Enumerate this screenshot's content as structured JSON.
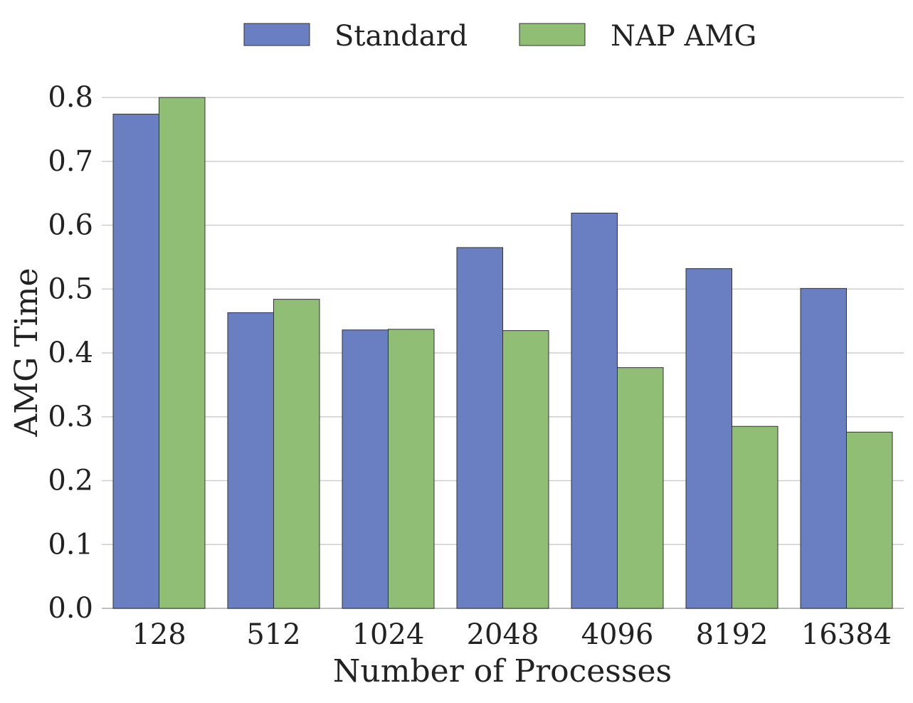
{
  "chart_data": {
    "type": "bar",
    "title": "",
    "xlabel": "Number of Processes",
    "ylabel": "AMG Time",
    "categories": [
      "128",
      "512",
      "1024",
      "2048",
      "4096",
      "8192",
      "16384"
    ],
    "series": [
      {
        "name": "Standard",
        "color": "#6a7fc1",
        "values": [
          0.774,
          0.463,
          0.436,
          0.565,
          0.619,
          0.532,
          0.501
        ]
      },
      {
        "name": "NAP AMG",
        "color": "#8fbe74",
        "values": [
          0.8,
          0.484,
          0.437,
          0.435,
          0.377,
          0.285,
          0.276
        ]
      }
    ],
    "ylim": [
      0,
      0.8
    ],
    "yticks": [
      "0.0",
      "0.1",
      "0.2",
      "0.3",
      "0.4",
      "0.5",
      "0.6",
      "0.7",
      "0.8"
    ],
    "grid": "horizontal",
    "legend_position": "top-center"
  }
}
